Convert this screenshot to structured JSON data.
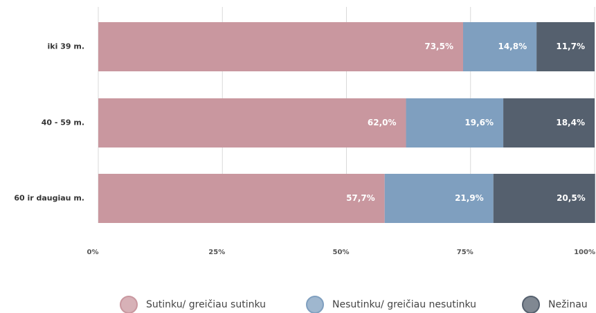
{
  "chart_data": {
    "type": "stacked-barh",
    "categories": [
      "iki 39 m.",
      "40 - 59 m.",
      "60 ir daugiau m."
    ],
    "series": [
      {
        "name": "Sutinku/ greičiau sutinku",
        "color": "#c9979f",
        "values": [
          73.5,
          62.0,
          57.7
        ],
        "value_labels": [
          "73,5%",
          "62,0%",
          "57,7%"
        ]
      },
      {
        "name": "Nesutinku/ greičiau nesutinku",
        "color": "#7f9fbf",
        "values": [
          14.8,
          19.6,
          21.9
        ],
        "value_labels": [
          "14,8%",
          "19,6%",
          "21,9%"
        ]
      },
      {
        "name": "Nežinau",
        "color": "#55606e",
        "values": [
          11.7,
          18.4,
          20.5
        ],
        "value_labels": [
          "11,7%",
          "18,4%",
          "20,5%"
        ]
      }
    ],
    "xlim": [
      0,
      100
    ],
    "xticks": [
      {
        "value": 0,
        "label": "0%"
      },
      {
        "value": 25,
        "label": "25%"
      },
      {
        "value": 50,
        "label": "50%"
      },
      {
        "value": 75,
        "label": "75%"
      },
      {
        "value": 100,
        "label": "100%"
      }
    ],
    "grid": true,
    "legend": "bottom"
  }
}
